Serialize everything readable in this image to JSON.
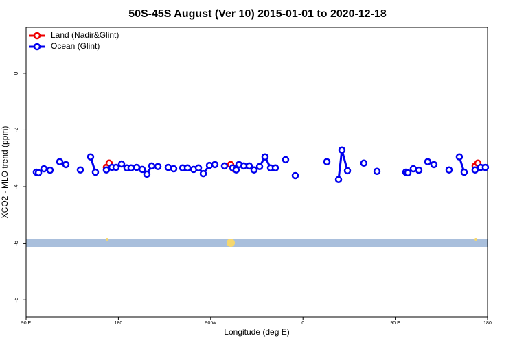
{
  "chart_data": {
    "type": "line",
    "title": "50S-45S August (Ver 10)   2015-01-01 to 2020-12-18",
    "x_label": "Longitude (deg E)",
    "y_label": "XCO2 - MLO trend (ppm)",
    "xlim": [
      90,
      540
    ],
    "ylim": [
      -8.6,
      1.62
    ],
    "xticks": [
      {
        "value": 90,
        "label": "90 E"
      },
      {
        "value": 180,
        "label": "180"
      },
      {
        "value": 270,
        "label": "90 W"
      },
      {
        "value": 360,
        "label": "0"
      },
      {
        "value": 450,
        "label": "90 E"
      },
      {
        "value": 540,
        "label": "180"
      }
    ],
    "yticks": [
      0,
      -2,
      -4,
      -6,
      -8
    ],
    "legend": "top-left",
    "series": [
      {
        "name": "Land (Nadir&Glint)",
        "color": "#ee0000",
        "x": [
          168.3,
          171.0,
          null,
          289.5,
          292.9,
          null,
          527.9,
          530.6
        ],
        "values": [
          -3.32,
          -3.17,
          null,
          -3.22,
          -3.37,
          null,
          -3.27,
          -3.17
        ]
      },
      {
        "name": "Ocean (Glint)",
        "color": "#0000ee",
        "x": [
          100.0,
          102.1,
          null,
          107.4,
          null,
          113.4,
          null,
          122.8,
          null,
          128.8,
          null,
          142.9,
          null,
          152.9,
          157.6,
          null,
          168.3,
          173.7,
          177.7,
          183.1,
          188.4,
          192.4,
          197.8,
          203.2,
          207.8,
          212.5,
          218.6,
          null,
          228.6,
          234.0,
          null,
          242.7,
          247.4,
          253.4,
          258.1,
          262.8,
          268.8,
          274.1,
          null,
          283.5,
          null,
          291.5,
          294.9,
          297.6,
          302.3,
          307.6,
          312.3,
          317.7,
          323.0,
          328.4,
          333.1,
          null,
          343.1,
          null,
          352.5,
          null,
          383.3,
          null,
          394.7,
          398.0,
          403.4,
          null,
          419.4,
          null,
          432.2,
          null,
          460.3,
          462.3,
          467.6,
          473.0,
          null,
          481.7,
          487.7,
          null,
          502.5,
          null,
          512.5,
          517.2,
          null,
          527.9,
          533.3,
          537.9
        ],
        "values": [
          -3.49,
          -3.51,
          null,
          -3.37,
          null,
          -3.42,
          null,
          -3.12,
          null,
          -3.22,
          null,
          -3.41,
          null,
          -2.95,
          -3.49,
          null,
          -3.41,
          -3.32,
          -3.32,
          -3.2,
          -3.34,
          -3.34,
          -3.32,
          -3.39,
          -3.56,
          -3.27,
          -3.29,
          null,
          -3.32,
          -3.37,
          null,
          -3.34,
          -3.34,
          -3.39,
          -3.34,
          -3.54,
          -3.25,
          -3.22,
          null,
          -3.27,
          null,
          -3.34,
          -3.41,
          -3.22,
          -3.27,
          -3.27,
          -3.41,
          -3.29,
          -2.95,
          -3.34,
          -3.34,
          null,
          -3.05,
          null,
          -3.61,
          null,
          -3.12,
          null,
          -3.75,
          -2.71,
          -3.44,
          null,
          -3.17,
          null,
          -3.46,
          null,
          -3.49,
          -3.51,
          -3.37,
          -3.42,
          null,
          -3.12,
          -3.22,
          null,
          -3.41,
          null,
          -2.95,
          -3.49,
          null,
          -3.41,
          -3.32,
          -3.32
        ]
      }
    ]
  }
}
